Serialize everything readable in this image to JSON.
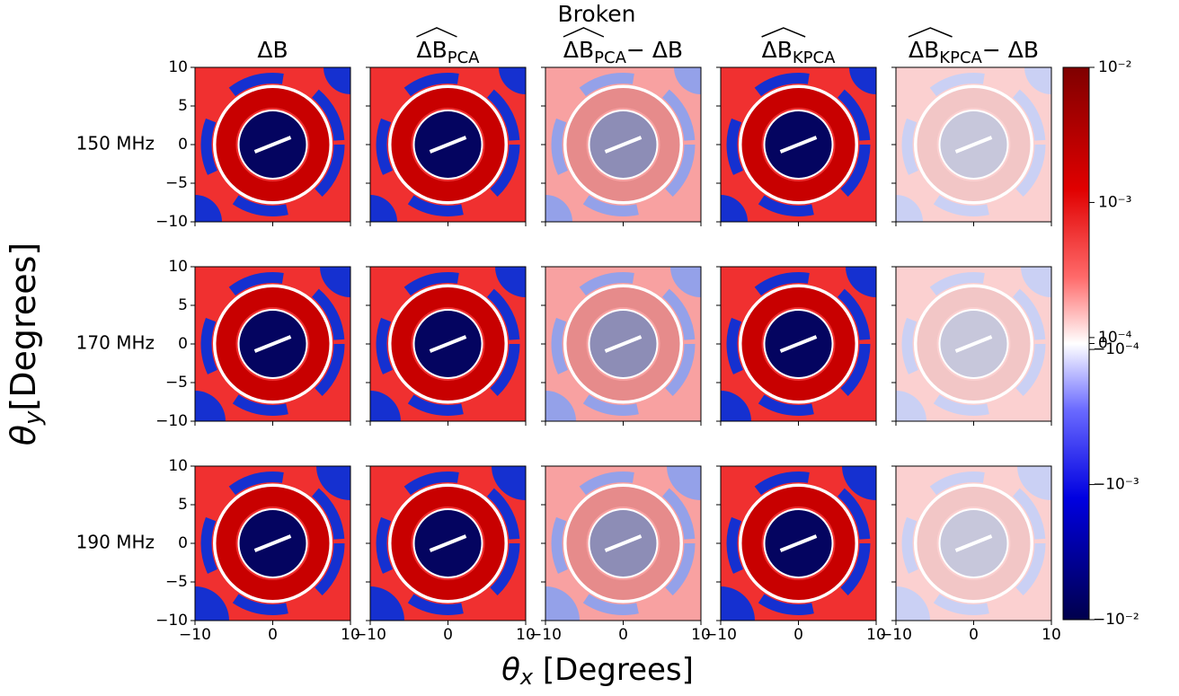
{
  "chart_data": {
    "type": "heatmap-grid",
    "title": "Broken",
    "columns": [
      {
        "text": "ΔB"
      },
      {
        "text": "ΔB",
        "sub": "PCA",
        "hat": true
      },
      {
        "text": "ΔB",
        "sub": "PCA",
        "hat": true,
        "tail": " − ΔB"
      },
      {
        "text": "ΔB",
        "sub": "KPCA",
        "hat": true
      },
      {
        "text": "ΔB",
        "sub": "KPCA",
        "hat": true,
        "tail": " − ΔB"
      }
    ],
    "rows": [
      "150 MHz",
      "170 MHz",
      "190 MHz"
    ],
    "xlabel": {
      "symbol": "θ",
      "sub": "x",
      "text": " [Degrees]"
    },
    "ylabel": {
      "symbol": "θ",
      "sub": "y",
      "text": "[Degrees]"
    },
    "xlim": [
      -10,
      10
    ],
    "ylim": [
      -10,
      10
    ],
    "xticks": [
      {
        "value": -10,
        "label": "−10"
      },
      0,
      10
    ],
    "yticks": [
      {
        "value": -10,
        "label": "−10"
      },
      {
        "value": -5,
        "label": "−5"
      },
      0,
      5,
      10
    ],
    "colorbar": {
      "scale": "symlog",
      "linthresh": 0.0001,
      "colormap": "seismic",
      "lim": [
        -0.01,
        0.01
      ],
      "ticks": [
        {
          "value": 0.01,
          "label": "10⁻²"
        },
        {
          "value": 0.001,
          "label": "10⁻³"
        },
        {
          "value": 0.0001,
          "label": "10⁻⁴"
        },
        0,
        {
          "value": -0.0001,
          "label": "−10⁻⁴"
        },
        {
          "value": -0.001,
          "label": "−10⁻³"
        },
        {
          "value": -0.01,
          "label": "−10⁻²"
        }
      ]
    }
  }
}
